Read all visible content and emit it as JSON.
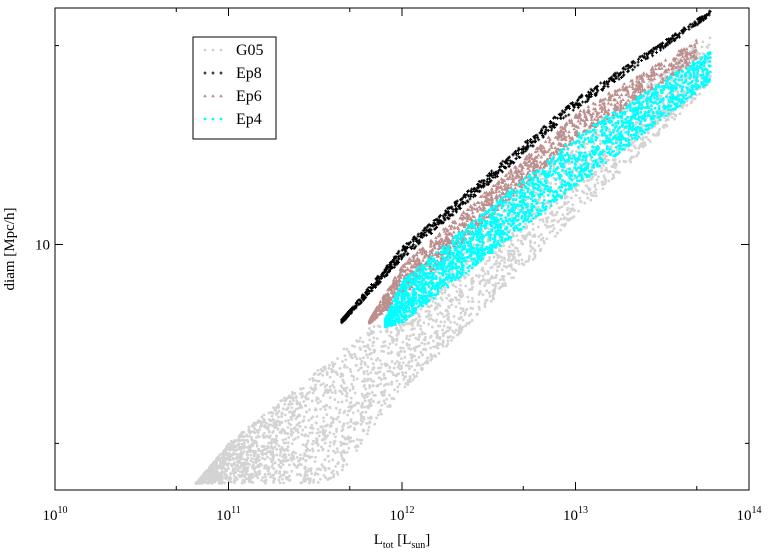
{
  "chart_data": {
    "type": "scatter",
    "xscale": "log",
    "yscale": "log",
    "xlim": [
      10000000000.0,
      100000000000000.0
    ],
    "ylim": [
      4.25,
      22.8
    ],
    "xlabel": {
      "main": "L",
      "sub": "tot",
      "mid": " [L",
      "sub2": "sun",
      "end": "]"
    },
    "ylabel": "diam [Mpc/h]",
    "grid": false,
    "legend_position": "top-left",
    "x_ticks": [
      {
        "value": 10000000000.0,
        "base": "10",
        "exp": "10"
      },
      {
        "value": 100000000000.0,
        "base": "10",
        "exp": "11"
      },
      {
        "value": 1000000000000.0,
        "base": "10",
        "exp": "12"
      },
      {
        "value": 10000000000000.0,
        "base": "10",
        "exp": "13"
      },
      {
        "value": 100000000000000.0,
        "base": "10",
        "exp": "14"
      }
    ],
    "y_ticks": [
      {
        "value": 10,
        "label": "10"
      }
    ],
    "series": [
      {
        "name": "G05",
        "color": "#d3d3d3",
        "marker": "circle",
        "envelope": {
          "lower": [
            [
              65000000000.0,
              4.35
            ],
            [
              100000000000.0,
              4.35
            ],
            [
              400000000000.0,
              4.35
            ],
            [
              1000000000000.0,
              6.0
            ],
            [
              10000000000000.0,
              11.0
            ],
            [
              60000000000000.0,
              17.5
            ]
          ],
          "upper": [
            [
              65000000000.0,
              4.35
            ],
            [
              100000000000.0,
              5.0
            ],
            [
              1000000000000.0,
              8.2
            ],
            [
              10000000000000.0,
              14.5
            ],
            [
              60000000000000.0,
              20.8
            ]
          ]
        }
      },
      {
        "name": "Ep8",
        "color": "#000000",
        "marker": "plus",
        "envelope": {
          "lower": [
            [
              450000000000.0,
              7.6
            ],
            [
              1000000000000.0,
              9.5
            ],
            [
              10000000000000.0,
              16.0
            ],
            [
              60000000000000.0,
              22.2
            ]
          ],
          "upper": [
            [
              450000000000.0,
              7.7
            ],
            [
              1000000000000.0,
              9.9
            ],
            [
              10000000000000.0,
              16.6
            ],
            [
              60000000000000.0,
              22.6
            ]
          ]
        }
      },
      {
        "name": "Ep6",
        "color": "#bc8f8f",
        "marker": "triangle",
        "envelope": {
          "lower": [
            [
              650000000000.0,
              7.6
            ],
            [
              1000000000000.0,
              8.3
            ],
            [
              10000000000000.0,
              14.4
            ],
            [
              50000000000000.0,
              19.0
            ]
          ],
          "upper": [
            [
              650000000000.0,
              7.7
            ],
            [
              1000000000000.0,
              9.3
            ],
            [
              10000000000000.0,
              15.8
            ],
            [
              50000000000000.0,
              20.4
            ]
          ]
        }
      },
      {
        "name": "Ep4",
        "color": "#00ffff",
        "marker": "circle",
        "envelope": {
          "lower": [
            [
              800000000000.0,
              7.5
            ],
            [
              1000000000000.0,
              7.6
            ],
            [
              10000000000000.0,
              12.2
            ],
            [
              60000000000000.0,
              17.6
            ]
          ],
          "upper": [
            [
              800000000000.0,
              7.7
            ],
            [
              1000000000000.0,
              8.8
            ],
            [
              10000000000000.0,
              14.6
            ],
            [
              60000000000000.0,
              19.6
            ]
          ]
        }
      }
    ]
  }
}
